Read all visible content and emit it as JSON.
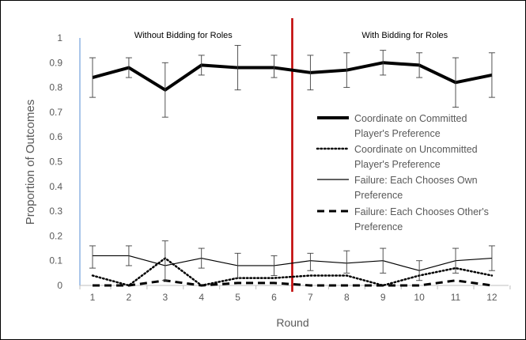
{
  "chart_data": {
    "type": "line",
    "title": "",
    "xlabel": "Round",
    "ylabel": "Proportion of Outcomes",
    "x": [
      1,
      2,
      3,
      4,
      5,
      6,
      7,
      8,
      9,
      10,
      11,
      12
    ],
    "ylim": [
      0,
      1
    ],
    "yticks": [
      "0",
      "0.1",
      "0.2",
      "0.3",
      "0.4",
      "0.5",
      "0.6",
      "0.7",
      "0.8",
      "0.9",
      "1"
    ],
    "xticks": [
      "1",
      "2",
      "3",
      "4",
      "5",
      "6",
      "7",
      "8",
      "9",
      "10",
      "11",
      "12"
    ],
    "grid": false,
    "legend_position": "right",
    "divider_after_round": 6.5,
    "divider_color": "#c00000",
    "sections": [
      {
        "label": "Without Bidding for Roles",
        "center_round": 3.5
      },
      {
        "label": "With Bidding for Roles",
        "center_round": 9.6
      }
    ],
    "series": [
      {
        "name": "Coordinate on Committed Player's Preference",
        "style": "thick-solid",
        "color": "#000000",
        "values": [
          0.84,
          0.88,
          0.79,
          0.89,
          0.88,
          0.88,
          0.86,
          0.87,
          0.9,
          0.89,
          0.82,
          0.85
        ],
        "err_low": [
          0.76,
          0.84,
          0.68,
          0.85,
          0.79,
          0.84,
          0.79,
          0.8,
          0.85,
          0.84,
          0.72,
          0.76
        ],
        "err_high": [
          0.92,
          0.92,
          0.9,
          0.93,
          0.97,
          0.93,
          0.93,
          0.94,
          0.95,
          0.94,
          0.92,
          0.94
        ]
      },
      {
        "name": "Coordinate on Uncommitted Player's Preference",
        "style": "dotted",
        "color": "#000000",
        "values": [
          0.04,
          0.0,
          0.11,
          0.0,
          0.03,
          0.03,
          0.04,
          0.04,
          0.0,
          0.04,
          0.07,
          0.04
        ]
      },
      {
        "name": "Failure: Each Chooses Own Preference",
        "style": "thin-solid",
        "color": "#000000",
        "values": [
          0.12,
          0.12,
          0.08,
          0.11,
          0.08,
          0.08,
          0.1,
          0.09,
          0.1,
          0.06,
          0.1,
          0.11
        ],
        "err_low": [
          0.07,
          0.08,
          0.02,
          0.07,
          0.03,
          0.04,
          0.06,
          0.05,
          0.05,
          0.02,
          0.05,
          0.06
        ],
        "err_high": [
          0.16,
          0.16,
          0.18,
          0.15,
          0.13,
          0.12,
          0.13,
          0.14,
          0.15,
          0.1,
          0.15,
          0.16
        ]
      },
      {
        "name": "Failure: Each Chooses Other's Preference",
        "style": "dashed",
        "color": "#000000",
        "values": [
          0.0,
          0.0,
          0.02,
          0.0,
          0.01,
          0.01,
          0.0,
          0.0,
          0.0,
          0.0,
          0.02,
          0.0
        ]
      }
    ],
    "legend_lines": [
      [
        "Coordinate on Committed",
        "Player's Preference"
      ],
      [
        "Coordinate on Uncommitted",
        "Player's Preference"
      ],
      [
        "Failure: Each Chooses Own",
        "Preference"
      ],
      [
        "Failure: Each Chooses Other's",
        "Preference"
      ]
    ]
  }
}
